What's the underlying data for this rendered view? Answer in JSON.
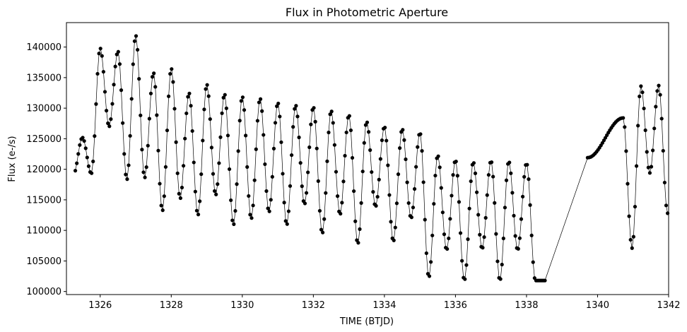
{
  "chart_data": {
    "type": "line",
    "title": "Flux in Photometric Aperture",
    "xlabel": "TIME (BTJD)",
    "ylabel": "Flux (e-/s)",
    "xlim": [
      1325.05,
      1342.0
    ],
    "ylim": [
      99500,
      144000
    ],
    "xticks": [
      1326,
      1328,
      1330,
      1332,
      1334,
      1336,
      1338,
      1340,
      1342
    ],
    "yticks": [
      100000,
      105000,
      110000,
      115000,
      120000,
      125000,
      130000,
      135000,
      140000
    ],
    "grid": false,
    "legend": "none",
    "series": [
      {
        "style": "line-with-markers",
        "color": "#000000",
        "segments": [
          {
            "x_start": 1325.3,
            "x_end": 1338.55,
            "period": 0.5,
            "first_peak": 1325.5,
            "peaks": [
              125200,
              139800,
              139300,
              141900,
              135800,
              136500,
              132500,
              133900,
              132300,
              131900,
              131600,
              130900,
              130500,
              130200,
              129600,
              128900,
              127800,
              127000,
              126600,
              126000,
              122300,
              121500,
              121200,
              121400,
              121300,
              121000
            ],
            "troughs": [
              119200,
              119300,
              127000,
              118300,
              118600,
              113200,
              115200,
              112500,
              115800,
              110900,
              111900,
              113000,
              110900,
              114300,
              109500,
              112600,
              107800,
              113900,
              108200,
              112000,
              102300,
              106800,
              101800,
              107000,
              101800,
              106800,
              101800
            ]
          },
          {
            "x_start": 1339.72,
            "x_end": 1342.0,
            "period": 0.5,
            "first_peak": 1340.72,
            "start_value": 121900,
            "peaks": [
              128400,
              133600,
              133700,
              135100
            ],
            "troughs": [
              107100,
              119400,
              112800,
              118300
            ]
          }
        ]
      }
    ]
  }
}
